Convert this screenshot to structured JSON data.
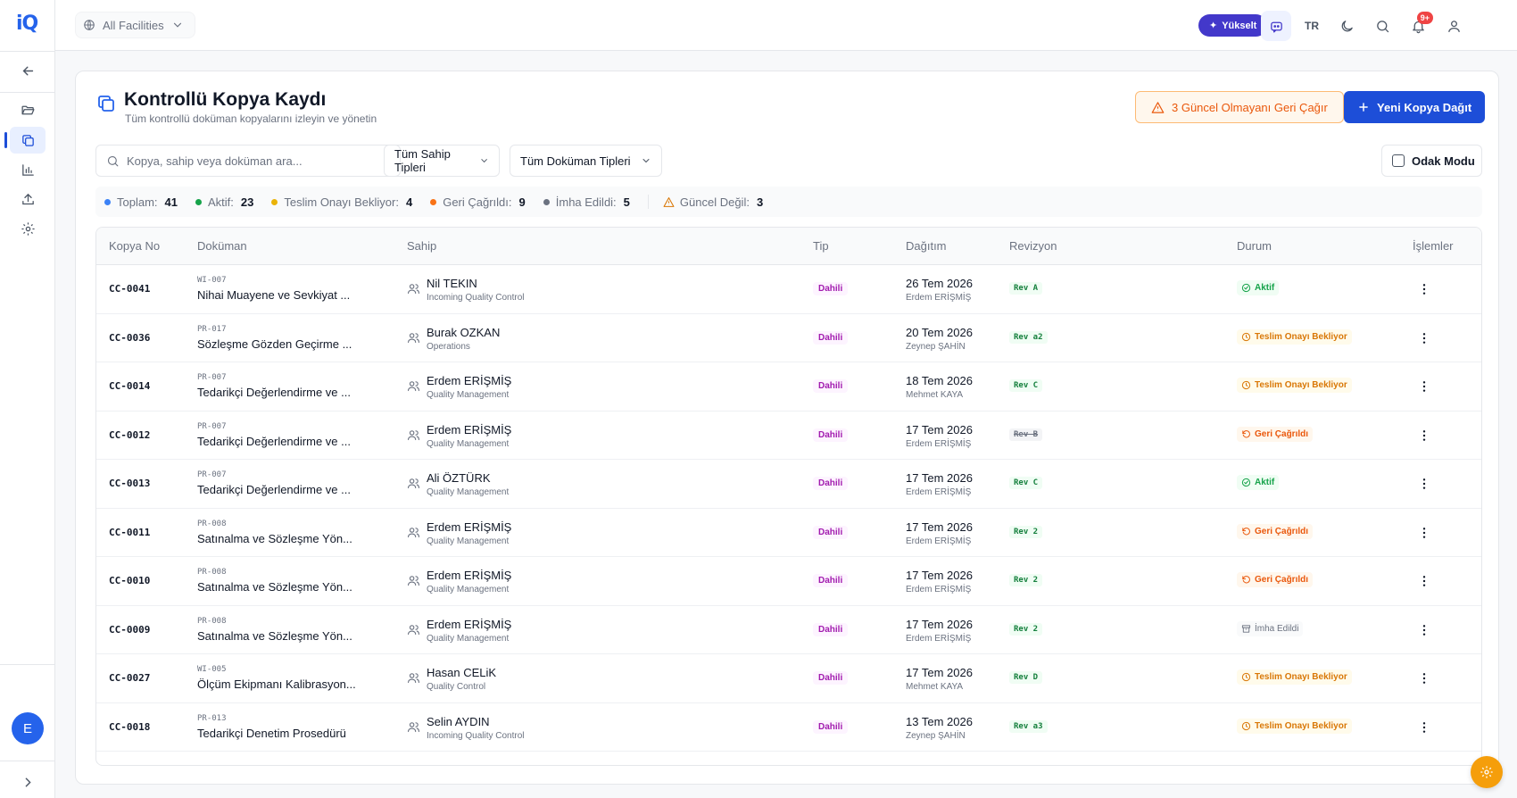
{
  "app": {
    "logo": "iQ"
  },
  "topbar": {
    "facility": "All Facilities",
    "upgrade": "Yükselt",
    "lang": "TR",
    "notif_badge": "9+"
  },
  "sidebar": {
    "avatar": "E"
  },
  "page": {
    "title": "Kontrollü Kopya Kaydı",
    "subtitle": "Tüm kontrollü doküman kopyalarını izleyin ve yönetin",
    "recall_button": "3 Güncel Olmayanı Geri Çağır",
    "new_button": "Yeni Kopya Dağıt"
  },
  "filters": {
    "search_placeholder": "Kopya, sahip veya doküman ara...",
    "owner_type": "Tüm Sahip Tipleri",
    "doc_type": "Tüm Doküman Tipleri",
    "focus_mode": "Odak Modu"
  },
  "stats": {
    "total_label": "Toplam:",
    "total": "41",
    "active_label": "Aktif:",
    "active": "23",
    "pending_label": "Teslim Onayı Bekliyor:",
    "pending": "4",
    "recalled_label": "Geri Çağrıldı:",
    "recalled": "9",
    "destroyed_label": "İmha Edildi:",
    "destroyed": "5",
    "outdated_label": "Güncel Değil:",
    "outdated": "3"
  },
  "colors": {
    "primary": "#1d4ed8",
    "upgrade": "#4338ca",
    "active": "#16a34a",
    "pending": "#d97706",
    "recalled": "#ea580c",
    "destroyed": "#6b7280",
    "total": "#3b82f6"
  },
  "table": {
    "headers": [
      "Kopya No",
      "Doküman",
      "Sahip",
      "Tip",
      "Dağıtım",
      "Revizyon",
      "Durum",
      "İşlemler"
    ],
    "rows": [
      {
        "no": "CC-0041",
        "code": "WI-007",
        "doc": "Nihai Muayene ve Sevkiyat ...",
        "owner": "Nil TEKIN",
        "dept": "Incoming Quality Control",
        "type": "Dahili",
        "date": "26 Tem 2026",
        "by": "Erdem ERİŞMİŞ",
        "rev": "Rev A",
        "status": "Aktif",
        "status_kind": "aktif"
      },
      {
        "no": "CC-0036",
        "code": "PR-017",
        "doc": "Sözleşme Gözden Geçirme ...",
        "owner": "Burak OZKAN",
        "dept": "Operations",
        "type": "Dahili",
        "date": "20 Tem 2026",
        "by": "Zeynep ŞAHİN",
        "rev": "Rev a2",
        "status": "Teslim Onayı Bekliyor",
        "status_kind": "teslim"
      },
      {
        "no": "CC-0014",
        "code": "PR-007",
        "doc": "Tedarikçi Değerlendirme ve ...",
        "owner": "Erdem ERİŞMİŞ",
        "dept": "Quality Management",
        "type": "Dahili",
        "date": "18 Tem 2026",
        "by": "Mehmet KAYA",
        "rev": "Rev C",
        "status": "Teslim Onayı Bekliyor",
        "status_kind": "teslim"
      },
      {
        "no": "CC-0012",
        "code": "PR-007",
        "doc": "Tedarikçi Değerlendirme ve ...",
        "owner": "Erdem ERİŞMİŞ",
        "dept": "Quality Management",
        "type": "Dahili",
        "date": "17 Tem 2026",
        "by": "Erdem ERİŞMİŞ",
        "rev": "Rev B",
        "status": "Geri Çağrıldı",
        "status_kind": "geri",
        "rev_outdated": true
      },
      {
        "no": "CC-0013",
        "code": "PR-007",
        "doc": "Tedarikçi Değerlendirme ve ...",
        "owner": "Ali ÖZTÜRK",
        "dept": "Quality Management",
        "type": "Dahili",
        "date": "17 Tem 2026",
        "by": "Erdem ERİŞMİŞ",
        "rev": "Rev C",
        "status": "Aktif",
        "status_kind": "aktif"
      },
      {
        "no": "CC-0011",
        "code": "PR-008",
        "doc": "Satınalma ve Sözleşme Yön...",
        "owner": "Erdem ERİŞMİŞ",
        "dept": "Quality Management",
        "type": "Dahili",
        "date": "17 Tem 2026",
        "by": "Erdem ERİŞMİŞ",
        "rev": "Rev 2",
        "status": "Geri Çağrıldı",
        "status_kind": "geri"
      },
      {
        "no": "CC-0010",
        "code": "PR-008",
        "doc": "Satınalma ve Sözleşme Yön...",
        "owner": "Erdem ERİŞMİŞ",
        "dept": "Quality Management",
        "type": "Dahili",
        "date": "17 Tem 2026",
        "by": "Erdem ERİŞMİŞ",
        "rev": "Rev 2",
        "status": "Geri Çağrıldı",
        "status_kind": "geri"
      },
      {
        "no": "CC-0009",
        "code": "PR-008",
        "doc": "Satınalma ve Sözleşme Yön...",
        "owner": "Erdem ERİŞMİŞ",
        "dept": "Quality Management",
        "type": "Dahili",
        "date": "17 Tem 2026",
        "by": "Erdem ERİŞMİŞ",
        "rev": "Rev 2",
        "status": "İmha Edildi",
        "status_kind": "imha"
      },
      {
        "no": "CC-0027",
        "code": "WI-005",
        "doc": "Ölçüm Ekipmanı Kalibrasyon...",
        "owner": "Hasan CELiK",
        "dept": "Quality Control",
        "type": "Dahili",
        "date": "17 Tem 2026",
        "by": "Mehmet KAYA",
        "rev": "Rev D",
        "status": "Teslim Onayı Bekliyor",
        "status_kind": "teslim"
      },
      {
        "no": "CC-0018",
        "code": "PR-013",
        "doc": "Tedarikçi Denetim Prosedürü",
        "owner": "Selin AYDIN",
        "dept": "Incoming Quality Control",
        "type": "Dahili",
        "date": "13 Tem 2026",
        "by": "Zeynep ŞAHİN",
        "rev": "Rev a3",
        "status": "Teslim Onayı Bekliyor",
        "status_kind": "teslim"
      }
    ]
  }
}
